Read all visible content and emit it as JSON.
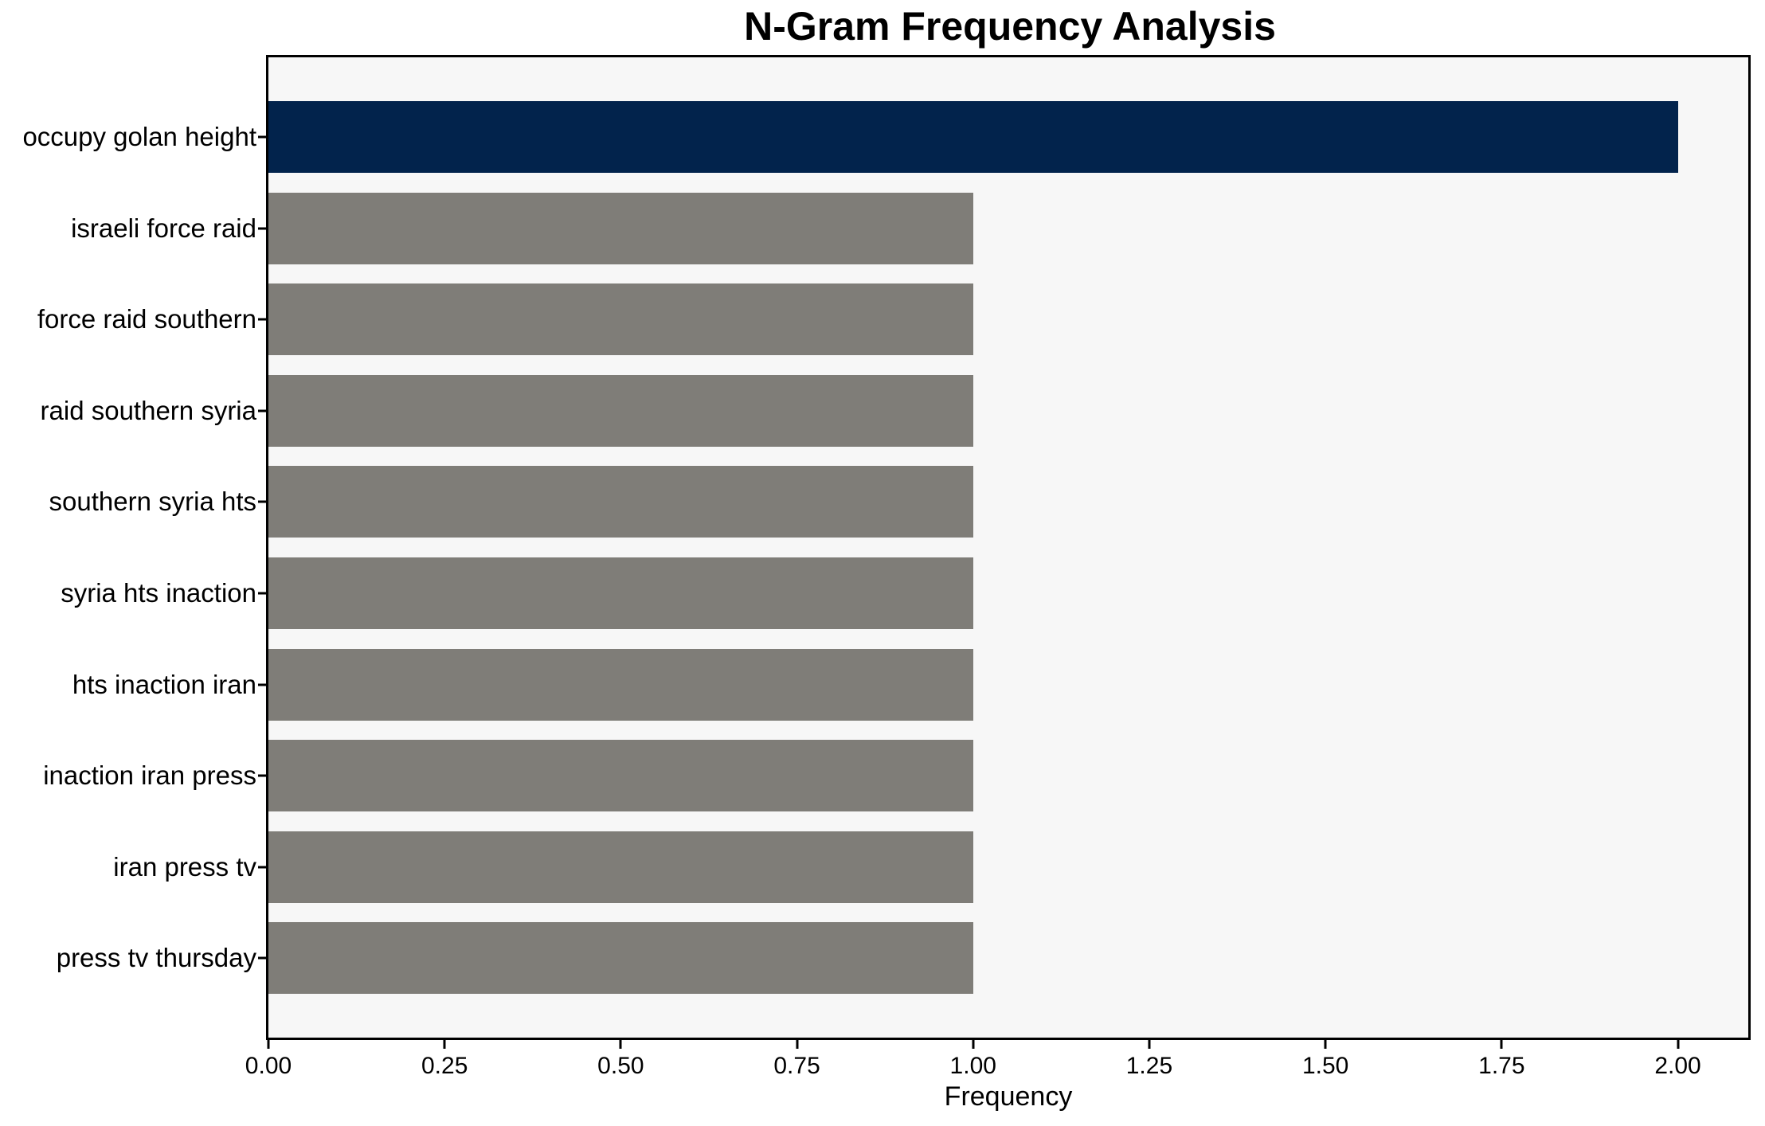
{
  "title": "N-Gram Frequency Analysis",
  "chart_data": {
    "type": "bar",
    "orientation": "horizontal",
    "title": "N-Gram Frequency Analysis",
    "xlabel": "Frequency",
    "ylabel": "",
    "categories": [
      "occupy golan height",
      "israeli force raid",
      "force raid southern",
      "raid southern syria",
      "southern syria hts",
      "syria hts inaction",
      "hts inaction iran",
      "inaction iran press",
      "iran press tv",
      "press tv thursday"
    ],
    "values": [
      2,
      1,
      1,
      1,
      1,
      1,
      1,
      1,
      1,
      1
    ],
    "xlim": [
      0,
      2.1
    ],
    "xticks": [
      0,
      0.25,
      0.5,
      0.75,
      1.0,
      1.25,
      1.5,
      1.75,
      2.0
    ],
    "xtick_labels": [
      "0.00",
      "0.25",
      "0.50",
      "0.75",
      "1.00",
      "1.25",
      "1.50",
      "1.75",
      "2.00"
    ],
    "grid": false,
    "legend": null,
    "bar_colors": [
      "#02234c",
      "#7f7d78",
      "#7f7d78",
      "#7f7d78",
      "#7f7d78",
      "#7f7d78",
      "#7f7d78",
      "#7f7d78",
      "#7f7d78",
      "#7f7d78"
    ],
    "colors": {
      "highlight_bar": "#02234c",
      "default_bar": "#7f7d78",
      "plot_background": "#f7f7f7",
      "figure_background": "#ffffff",
      "spine": "#000000",
      "text": "#000000"
    }
  }
}
